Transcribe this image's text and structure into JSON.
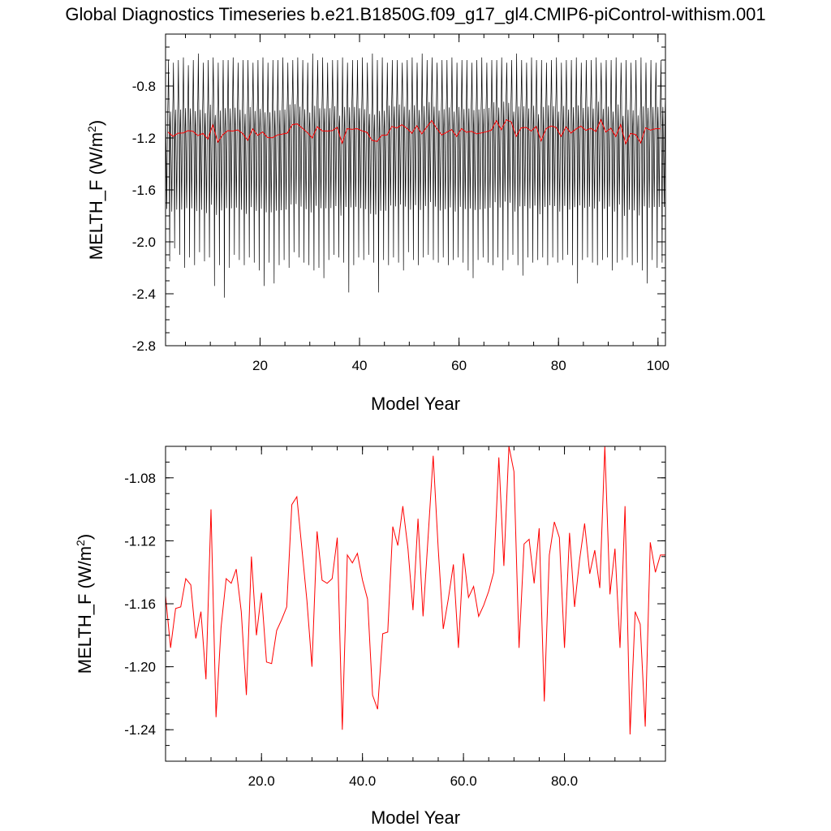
{
  "title": "Global Diagnostics Timeseries b.e21.B1850G.f09_g17_gl4.CMIP6-piControl-withism.001",
  "colors": {
    "monthly": "#000000",
    "annual": "#ff0000",
    "axis": "#000000",
    "background": "#ffffff"
  },
  "chart_data": [
    {
      "type": "line",
      "xlabel": "Model Year",
      "ylabel_main": "MELTH_F (W/m",
      "ylabel_sup": "2",
      "ylabel_close": ")",
      "xlim": [
        1,
        101.5
      ],
      "ylim": [
        -2.8,
        -0.4
      ],
      "x_ticks": [
        20,
        40,
        60,
        80,
        100
      ],
      "x_tick_labels": [
        "20",
        "40",
        "60",
        "80",
        "100"
      ],
      "y_ticks": [
        -2.8,
        -2.4,
        -2.0,
        -1.6,
        -1.2,
        -0.8
      ],
      "y_tick_labels": [
        "-2.8",
        "-2.4",
        "-2.0",
        "-1.6",
        "-1.2",
        "-0.8"
      ],
      "grid": false,
      "legend": "none",
      "series": [
        {
          "color": "#000000",
          "monthly_pattern": [
            -0.98,
            -1.22,
            -1.48,
            -1.75,
            -1.35,
            -1.02,
            -0.88,
            -0.62,
            -0.9,
            -1.42,
            -1.95,
            -1.12
          ],
          "annual_minima": [
            -2.15,
            -2.05,
            -2.1,
            -2.2,
            -2.12,
            -2.18,
            -2.08,
            -2.15,
            -2.12,
            -2.34,
            -2.18,
            -2.43,
            -2.2,
            -2.1,
            -2.14,
            -2.18,
            -2.12,
            -2.16,
            -2.22,
            -2.34,
            -2.16,
            -2.32,
            -2.18,
            -2.14,
            -2.2,
            -2.08,
            -2.12,
            -2.16,
            -2.18,
            -2.22,
            -2.2,
            -2.28,
            -2.14,
            -2.1,
            -2.12,
            -2.16,
            -2.39,
            -2.18,
            -2.12,
            -2.14,
            -2.1,
            -2.16,
            -2.39,
            -2.14,
            -2.18,
            -2.12,
            -2.16,
            -2.22,
            -2.08,
            -2.14,
            -2.18,
            -2.12,
            -2.1,
            -2.14,
            -2.16,
            -2.12,
            -2.18,
            -2.14,
            -2.12,
            -2.16,
            -2.22,
            -2.28,
            -2.14,
            -2.12,
            -2.16,
            -2.18,
            -2.12,
            -2.22,
            -2.14,
            -2.1,
            -2.18,
            -2.26,
            -2.12,
            -2.16,
            -2.14,
            -2.12,
            -2.18,
            -2.12,
            -2.16,
            -2.14,
            -2.1,
            -2.18,
            -2.32,
            -2.14,
            -2.12,
            -2.16,
            -2.18,
            -2.14,
            -2.12,
            -2.22,
            -2.16,
            -2.14,
            -2.12,
            -2.18,
            -2.16,
            -2.22,
            -2.32,
            -2.14,
            -2.2,
            -2.16,
            -2.18
          ],
          "annual_maxima": [
            -0.6,
            -0.62,
            -0.6,
            -0.58,
            -0.64,
            -0.6,
            -0.55,
            -0.62,
            -0.6,
            -0.58,
            -0.62,
            -0.6,
            -0.6,
            -0.58,
            -0.62,
            -0.6,
            -0.6,
            -0.62,
            -0.6,
            -0.58,
            -0.62,
            -0.6,
            -0.6,
            -0.58,
            -0.62,
            -0.6,
            -0.58,
            -0.6,
            -0.62,
            -0.55,
            -0.6,
            -0.58,
            -0.62,
            -0.6,
            -0.6,
            -0.58,
            -0.62,
            -0.6,
            -0.6,
            -0.58,
            -0.62,
            -0.55,
            -0.6,
            -0.58,
            -0.62,
            -0.6,
            -0.6,
            -0.62,
            -0.6,
            -0.58,
            -0.62,
            -0.55,
            -0.6,
            -0.58,
            -0.62,
            -0.6,
            -0.6,
            -0.58,
            -0.62,
            -0.6,
            -0.6,
            -0.62,
            -0.6,
            -0.58,
            -0.62,
            -0.6,
            -0.6,
            -0.58,
            -0.62,
            -0.6,
            -0.55,
            -0.6,
            -0.62,
            -0.58,
            -0.6,
            -0.6,
            -0.62,
            -0.6,
            -0.58,
            -0.62,
            -0.6,
            -0.6,
            -0.58,
            -0.62,
            -0.6,
            -0.6,
            -0.58,
            -0.62,
            -0.6,
            -0.6,
            -0.58,
            -0.62,
            -0.6,
            -0.62,
            -0.6,
            -0.58,
            -0.62,
            -0.6,
            -0.62,
            -0.6,
            -0.6
          ]
        },
        {
          "color": "#ff0000",
          "source": "annual"
        }
      ]
    },
    {
      "type": "line",
      "xlabel": "Model Year",
      "ylabel_main": "MELTH_F (W/m",
      "ylabel_sup": "2",
      "ylabel_close": ")",
      "xlim": [
        1,
        100
      ],
      "ylim": [
        -1.26,
        -1.06
      ],
      "x_ticks": [
        20,
        40,
        60,
        80
      ],
      "x_tick_labels": [
        "20.0",
        "40.0",
        "60.0",
        "80.0"
      ],
      "y_ticks": [
        -1.24,
        -1.2,
        -1.16,
        -1.12,
        -1.08
      ],
      "y_tick_labels": [
        "-1.24",
        "-1.20",
        "-1.16",
        "-1.12",
        "-1.08"
      ],
      "grid": false,
      "legend": "none",
      "series": [
        {
          "color": "#ff0000",
          "x_start": 1,
          "values": [
            -1.155,
            -1.188,
            -1.163,
            -1.162,
            -1.144,
            -1.148,
            -1.182,
            -1.165,
            -1.208,
            -1.1,
            -1.232,
            -1.175,
            -1.144,
            -1.147,
            -1.138,
            -1.165,
            -1.218,
            -1.13,
            -1.18,
            -1.153,
            -1.197,
            -1.198,
            -1.177,
            -1.17,
            -1.162,
            -1.097,
            -1.092,
            -1.125,
            -1.158,
            -1.2,
            -1.114,
            -1.145,
            -1.147,
            -1.144,
            -1.118,
            -1.24,
            -1.129,
            -1.134,
            -1.128,
            -1.145,
            -1.157,
            -1.218,
            -1.227,
            -1.179,
            -1.178,
            -1.111,
            -1.123,
            -1.098,
            -1.125,
            -1.164,
            -1.106,
            -1.168,
            -1.117,
            -1.066,
            -1.125,
            -1.176,
            -1.157,
            -1.135,
            -1.188,
            -1.128,
            -1.156,
            -1.149,
            -1.168,
            -1.161,
            -1.152,
            -1.14,
            -1.067,
            -1.136,
            -1.06,
            -1.076,
            -1.188,
            -1.122,
            -1.119,
            -1.147,
            -1.112,
            -1.222,
            -1.129,
            -1.108,
            -1.118,
            -1.188,
            -1.115,
            -1.162,
            -1.132,
            -1.109,
            -1.141,
            -1.126,
            -1.15,
            -1.06,
            -1.154,
            -1.125,
            -1.188,
            -1.098,
            -1.243,
            -1.165,
            -1.173,
            -1.238,
            -1.121,
            -1.14,
            -1.129,
            -1.129
          ]
        }
      ]
    }
  ]
}
